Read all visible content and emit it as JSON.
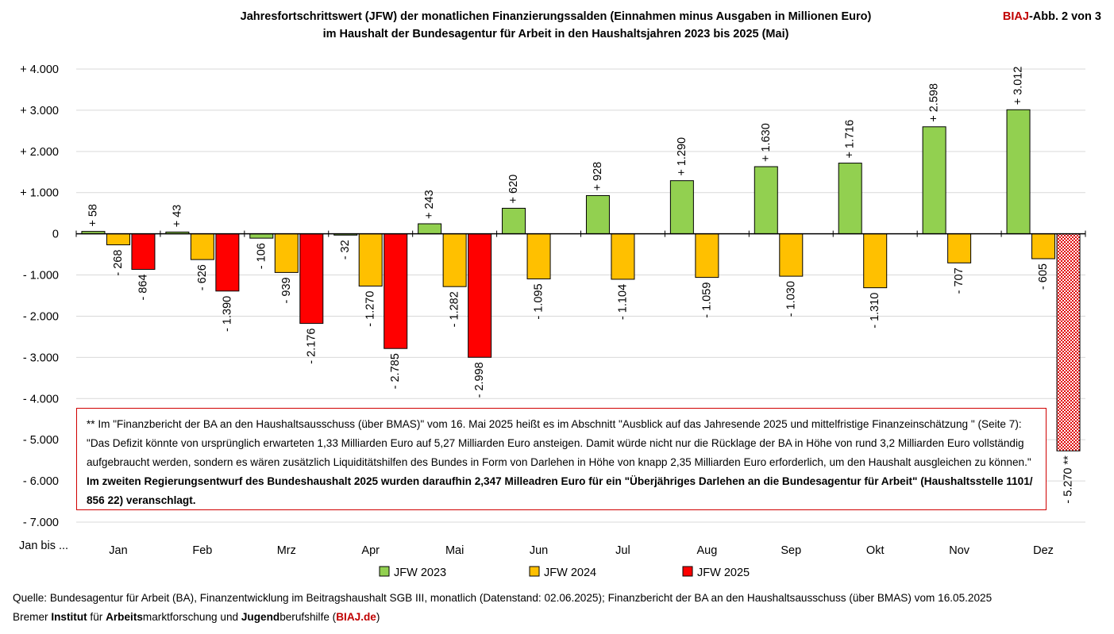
{
  "header": {
    "title_line1": "Jahresfortschrittswert (JFW) der monatlichen Finanzierungssalden (Einnahmen minus Ausgaben in Millionen Euro)",
    "title_line2": "im Haushalt der Bundesagentur für Arbeit in den Haushaltsjahren 2023 bis 2025 (Mai)",
    "badge_brand": "BIAJ",
    "badge_rest": "-Abb. 2 von 3"
  },
  "chart_data": {
    "type": "bar",
    "title": "Jahresfortschrittswert (JFW) der monatlichen Finanzierungssalden (Einnahmen minus Ausgaben in Millionen Euro) im Haushalt der Bundesagentur für Arbeit in den Haushaltsjahren 2023 bis 2025 (Mai)",
    "xlabel": "Jan bis ...",
    "ylabel": "",
    "ylim": [
      -7000,
      4000
    ],
    "yticks": [
      4000,
      3000,
      2000,
      1000,
      0,
      -1000,
      -2000,
      -3000,
      -4000,
      -5000,
      -6000,
      -7000
    ],
    "ytick_labels": [
      "+ 4.000",
      "+ 3.000",
      "+ 2.000",
      "+ 1.000",
      "0",
      "- 1.000",
      "- 2.000",
      "- 3.000",
      "- 4.000",
      "- 5.000",
      "- 6.000",
      "- 7.000"
    ],
    "categories": [
      "Jan",
      "Feb",
      "Mrz",
      "Apr",
      "Mai",
      "Jun",
      "Jul",
      "Aug",
      "Sep",
      "Okt",
      "Nov",
      "Dez"
    ],
    "grid": true,
    "legend_position": "bottom",
    "series": [
      {
        "name": "JFW 2023",
        "color": "#92D050",
        "values": [
          58,
          43,
          -106,
          -32,
          243,
          620,
          928,
          1290,
          1630,
          1716,
          2598,
          3012
        ],
        "labels": [
          "+ 58",
          "+ 43",
          "- 106",
          "- 32",
          "+ 243",
          "+ 620",
          "+ 928",
          "+ 1.290",
          "+ 1.630",
          "+ 1.716",
          "+ 2.598",
          "+ 3.012"
        ]
      },
      {
        "name": "JFW 2024",
        "color": "#FFC000",
        "values": [
          -268,
          -626,
          -939,
          -1270,
          -1282,
          -1095,
          -1104,
          -1059,
          -1030,
          -1310,
          -707,
          -605
        ],
        "labels": [
          "- 268",
          "- 626",
          "- 939",
          "- 1.270",
          "- 1.282",
          "- 1.095",
          "- 1.104",
          "- 1.059",
          "- 1.030",
          "- 1.310",
          "- 707",
          "- 605"
        ]
      },
      {
        "name": "JFW 2025",
        "color": "#FF0000",
        "values": [
          -864,
          -1390,
          -2176,
          -2785,
          -2998,
          null,
          null,
          null,
          null,
          null,
          null,
          -5270
        ],
        "labels": [
          "- 864",
          "- 1.390",
          "- 2.176",
          "- 2.785",
          "- 2.998",
          "",
          "",
          "",
          "",
          "",
          "",
          "- 5.270 **"
        ],
        "hatched_categories": [
          "Dez"
        ]
      }
    ]
  },
  "note": {
    "text": "** Im \"Finanzbericht der BA an den Haushaltsausschuss (über BMAS)\" vom 16. Mai 2025 heißt es im Abschnitt \"Ausblick auf das Jahresende 2025 und mittelfristige Finanzeinschätzung \" (Seite 7): \"Das Defizit könnte von ursprünglich erwarteten 1,33 Milliarden Euro auf 5,27 Milliarden Euro ansteigen. Damit würde nicht nur die Rücklage der BA in Höhe von rund 3,2 Milliarden Euro vollständig aufgebraucht werden, sondern es wären zusätzlich Liquiditätshilfen des Bundes in Form von Darlehen in Höhe von knapp 2,35 Milliarden Euro erforderlich, um den Haushalt ausgleichen zu können.\"",
    "bold_text": "Im zweiten Regierungsentwurf des Bundeshaushalt 2025 wurden daraufhin 2,347 Milleadren Euro für ein \"Überjähriges Darlehen an die Bundesagentur für Arbeit\" (Haushaltsstelle 1101/ 856 22) veranschlagt."
  },
  "footer": {
    "source": "Quelle: Bundesagentur für Arbeit (BA), Finanzentwicklung im Beitragshaushalt SGB III, monatlich (Datenstand: 02.06.2025); Finanzbericht der BA an den Haushaltsausschuss (über BMAS) vom 16.05.2025",
    "credit_1": "Bremer ",
    "credit_2": "Institut",
    "credit_3": " für ",
    "credit_4": "Arbeits",
    "credit_5": "marktforschung und ",
    "credit_6": "Jugend",
    "credit_7": "berufshilfe (",
    "credit_8": "BIAJ.de",
    "credit_9": ")"
  }
}
